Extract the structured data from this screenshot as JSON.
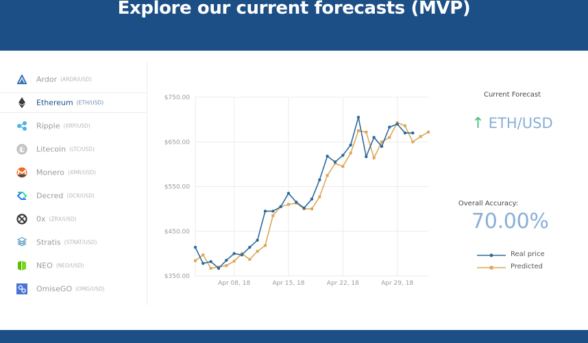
{
  "header": {
    "title": "Explore our current forecasts (MVP)",
    "background": "#1c4f86"
  },
  "sidebar": {
    "items": [
      {
        "name": "Ardor",
        "pair": "(ARDR/USD)",
        "icon": "ardor-icon",
        "active": false
      },
      {
        "name": "Ethereum",
        "pair": "(ETH/USD)",
        "icon": "ethereum-icon",
        "active": true
      },
      {
        "name": "Ripple",
        "pair": "(XRP/USD)",
        "icon": "ripple-icon",
        "active": false
      },
      {
        "name": "Litecoin",
        "pair": "(LTC/USD)",
        "icon": "litecoin-icon",
        "active": false
      },
      {
        "name": "Monero",
        "pair": "(XMR/USD)",
        "icon": "monero-icon",
        "active": false
      },
      {
        "name": "Decred",
        "pair": "(DCR/USD)",
        "icon": "decred-icon",
        "active": false
      },
      {
        "name": "0x",
        "pair": "(ZRX/USD)",
        "icon": "0x-icon",
        "active": false
      },
      {
        "name": "Stratis",
        "pair": "(STRAT/USD)",
        "icon": "stratis-icon",
        "active": false
      },
      {
        "name": "NEO",
        "pair": "(NEO/USD)",
        "icon": "neo-icon",
        "active": false
      },
      {
        "name": "OmiseGO",
        "pair": "(OMG/USD)",
        "icon": "omisego-icon",
        "active": false
      }
    ]
  },
  "forecast": {
    "title": "Current Forecast",
    "direction": "up",
    "arrow": "↑",
    "arrow_color": "#46c07a",
    "pair": "ETH/USD",
    "accuracy_label": "Overall Accuracy:",
    "accuracy_value": "70.00%"
  },
  "legend": {
    "items": [
      {
        "label": "Real price",
        "color": "#2c6a99"
      },
      {
        "label": "Predicted",
        "color": "#dba757"
      }
    ]
  },
  "chart_data": {
    "type": "line",
    "title": "",
    "xlabel": "",
    "ylabel": "",
    "ylim": [
      350,
      750
    ],
    "yticks": [
      350,
      450,
      550,
      650,
      750
    ],
    "ytick_labels": [
      "$350.00",
      "$450.00",
      "$550.00",
      "$650.00",
      "$750.00"
    ],
    "xtick_labels": [
      "Apr 08, 18",
      "Apr 15, 18",
      "Apr 22, 18",
      "Apr 29, 18"
    ],
    "grid": true,
    "legend_position": "right",
    "x": [
      "Apr 03",
      "Apr 04",
      "Apr 05",
      "Apr 06",
      "Apr 07",
      "Apr 08",
      "Apr 09",
      "Apr 10",
      "Apr 11",
      "Apr 12",
      "Apr 13",
      "Apr 14",
      "Apr 15",
      "Apr 16",
      "Apr 17",
      "Apr 18",
      "Apr 19",
      "Apr 20",
      "Apr 21",
      "Apr 22",
      "Apr 23",
      "Apr 24",
      "Apr 25",
      "Apr 26",
      "Apr 27",
      "Apr 28",
      "Apr 29",
      "Apr 30",
      "May 01",
      "May 02",
      "May 03"
    ],
    "series": [
      {
        "name": "Real price",
        "color": "#2c6a99",
        "values": [
          414,
          378,
          382,
          367,
          385,
          400,
          397,
          414,
          430,
          495,
          495,
          505,
          535,
          515,
          502,
          522,
          565,
          618,
          605,
          620,
          643,
          705,
          617,
          660,
          640,
          683,
          690,
          670,
          670,
          null,
          null
        ]
      },
      {
        "name": "Predicted",
        "color": "#dba757",
        "values": [
          384,
          397,
          367,
          370,
          373,
          383,
          400,
          387,
          405,
          418,
          485,
          505,
          510,
          513,
          500,
          500,
          527,
          575,
          602,
          595,
          625,
          675,
          672,
          614,
          650,
          660,
          693,
          686,
          650,
          662,
          672
        ]
      }
    ]
  }
}
